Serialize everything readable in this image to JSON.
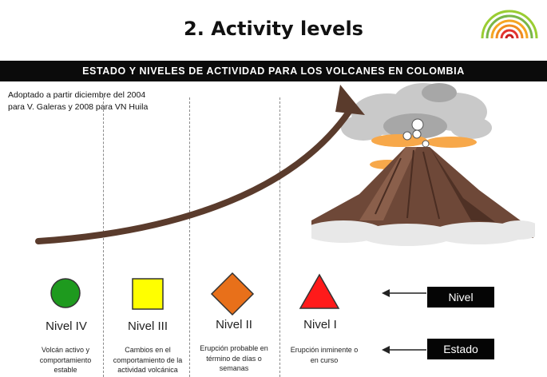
{
  "title": "2. Activity levels",
  "banner": "ESTADO Y NIVELES DE ACTIVIDAD PARA LOS VOLCANES EN COLOMBIA",
  "note": {
    "line1": "Adoptado a partir diciembre del 2004",
    "line2": "para V. Galeras y 2008 para VN Huila"
  },
  "levels": [
    {
      "name": "Nivel IV",
      "shape": "circle",
      "color": "#1e9a1e",
      "desc": [
        "Volcán activo y",
        "comportamiento",
        "estable"
      ]
    },
    {
      "name": "Nivel III",
      "shape": "square",
      "color": "#ffff00",
      "desc": [
        "Cambios en el",
        "comportamiento de la",
        "actividad volcánica"
      ]
    },
    {
      "name": "Nivel II",
      "shape": "diamond",
      "color": "#e8701a",
      "desc": [
        "Erupción probable en",
        "término de días o",
        "semanas"
      ]
    },
    {
      "name": "Nivel  I",
      "shape": "triangle",
      "color": "#ff1a1a",
      "desc": [
        "Erupción inminente o",
        "en curso"
      ]
    }
  ],
  "legend": {
    "nivel": "Nivel",
    "estado": "Estado"
  },
  "colors": {
    "arrow": "#5a3b2c",
    "banner_bg": "#0b0b0b",
    "logo_green": "#7ab648",
    "logo_red": "#e3342f"
  },
  "icons": [
    "logo-spiral-icon",
    "volcano-illustration",
    "curved-arrow-icon",
    "left-arrow-icon"
  ]
}
